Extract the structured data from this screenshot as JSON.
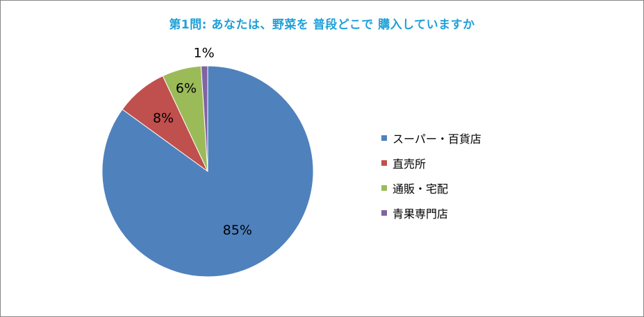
{
  "chart_data": {
    "type": "pie",
    "title": "第1問: あなたは、野菜を 普段どこで 購入していますか",
    "categories": [
      "スーパー・百貨店",
      "直売所",
      "通販・宅配",
      "青果専門店"
    ],
    "values": [
      85,
      8,
      6,
      1
    ],
    "labels": [
      "85%",
      "8%",
      "6%",
      "1%"
    ],
    "colors": [
      "#4f81bd",
      "#c0504d",
      "#9bbb59",
      "#8064a2"
    ],
    "start_angle_deg": 0,
    "direction": "clockwise",
    "legend_position": "right"
  }
}
